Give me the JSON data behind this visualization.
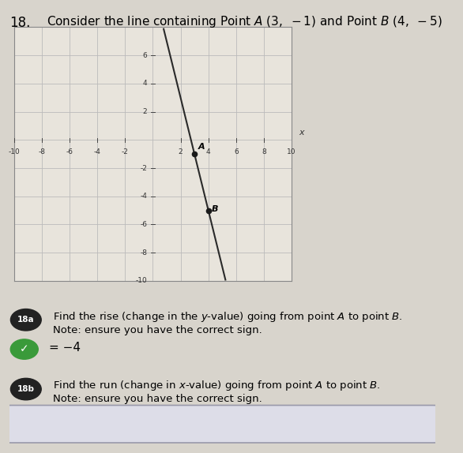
{
  "problem_number": "18.",
  "point_A": [
    3,
    -1
  ],
  "point_B": [
    4,
    -5
  ],
  "xlim": [
    -10,
    10
  ],
  "ylim": [
    -10,
    8
  ],
  "xtick_labels": [
    "-10",
    "-8",
    "-6",
    "-4",
    "-2",
    "2",
    "4",
    "6",
    "8",
    "10"
  ],
  "xtick_vals": [
    -10,
    -8,
    -6,
    -4,
    -2,
    2,
    4,
    6,
    8,
    10
  ],
  "ytick_labels": [
    "6",
    "4",
    "2",
    "-2",
    "-4",
    "-6",
    "-8",
    "-10"
  ],
  "ytick_vals": [
    6,
    4,
    2,
    -2,
    -4,
    -6,
    -8,
    -10
  ],
  "grid_color": "#bbbbbb",
  "line_color": "#2a2a2a",
  "point_color": "#1a1a1a",
  "bg_color": "#d8d4cc",
  "plot_bg": "#e8e4dc",
  "badge_18a_color": "#222222",
  "badge_18b_color": "#222222",
  "check_color": "#3a9a3a",
  "q18a_text1": "Find the rise (change in the y-value) going from point A to point B.",
  "q18a_text2": "Note: ensure you have the correct sign.",
  "q18a_answer": "= -4",
  "q18b_text1": "Find the run (change in x-value) going from point A to point B.",
  "q18b_text2": "Note: ensure you have the correct sign."
}
